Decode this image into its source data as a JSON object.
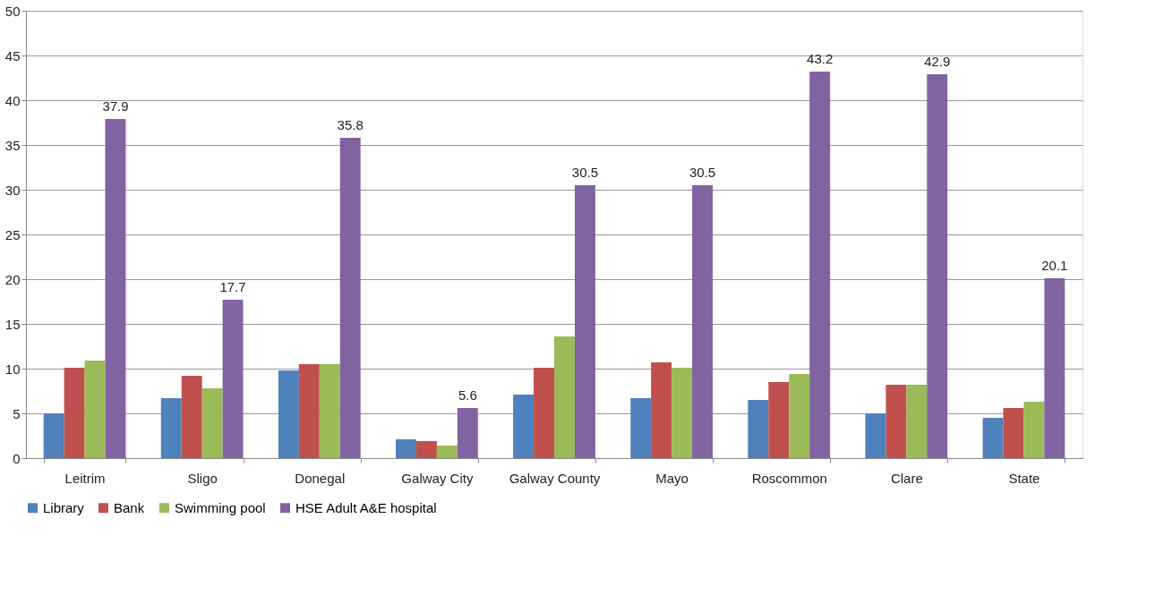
{
  "chart_data": {
    "type": "bar",
    "categories": [
      "Leitrim",
      "Sligo",
      "Donegal",
      "Galway City",
      "Galway County",
      "Mayo",
      "Roscommon",
      "Clare",
      "State"
    ],
    "series": [
      {
        "name": "Library",
        "color": "#4f81bd",
        "values": [
          5.0,
          6.7,
          9.8,
          2.1,
          7.1,
          6.7,
          6.5,
          5.0,
          4.5
        ]
      },
      {
        "name": "Bank",
        "color": "#c0504d",
        "values": [
          10.1,
          9.2,
          10.5,
          1.9,
          10.1,
          10.7,
          8.5,
          8.2,
          5.6
        ]
      },
      {
        "name": "Swimming pool",
        "color": "#9bbb59",
        "values": [
          10.9,
          7.8,
          10.5,
          1.4,
          13.6,
          10.1,
          9.4,
          8.2,
          6.3
        ]
      },
      {
        "name": "HSE Adult A&E hospital",
        "color": "#8064a2",
        "values": [
          37.9,
          17.7,
          35.8,
          5.6,
          30.5,
          30.5,
          43.2,
          42.9,
          20.1
        ],
        "value_labels": [
          "37.9",
          "17.7",
          "35.8",
          "5.6",
          "30.5",
          "30.5",
          "43.2",
          "42.9",
          "20.1"
        ]
      }
    ],
    "ylim": [
      0,
      50
    ],
    "yticks": [
      0,
      5,
      10,
      15,
      20,
      25,
      30,
      35,
      40,
      45,
      50
    ],
    "grid": "y",
    "legend": "bottom"
  }
}
